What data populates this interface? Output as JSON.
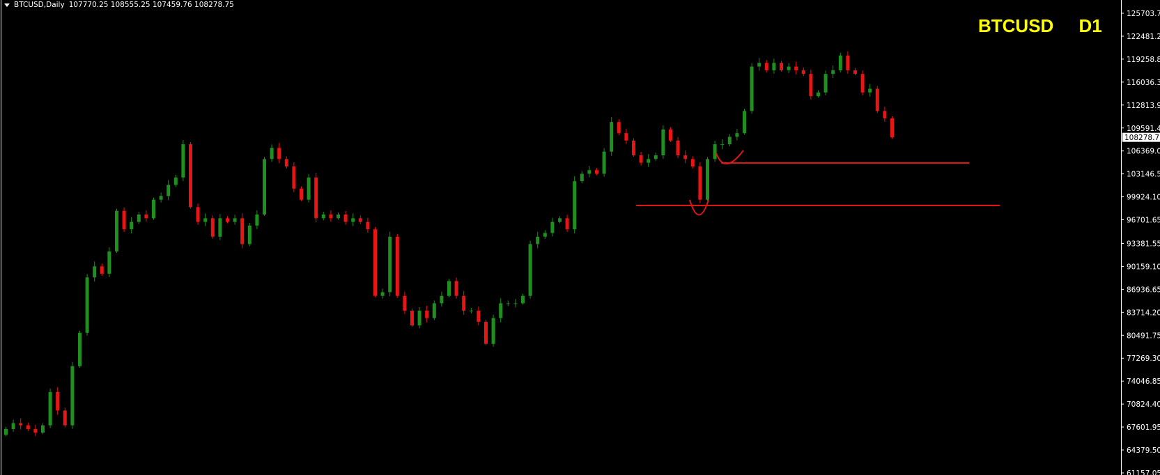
{
  "header": {
    "symbol_period": "BTCUSD,Daily",
    "ohlc": "107770.25 108555.25 107459.76 108278.75"
  },
  "overlay": {
    "symbol": "BTCUSD",
    "timeframe": "D1"
  },
  "colors": {
    "bull": "#1f8f1f",
    "bear": "#e81515",
    "background": "#000000",
    "axis": "#ffffff",
    "line": "#e01515",
    "title": "#ffff00"
  },
  "chart_data": {
    "type": "candlestick",
    "title": "",
    "y_ticks": [
      "125703.70",
      "122481.25",
      "119258.80",
      "116036.35",
      "112813.90",
      "109591.45",
      "106369.00",
      "103146.55",
      "99924.10",
      "96701.65",
      "93381.55",
      "90159.10",
      "86936.65",
      "83714.20",
      "80491.75",
      "77269.30",
      "74046.85",
      "70824.40",
      "67601.95",
      "64379.50",
      "61157.05"
    ],
    "ylim": [
      60000,
      127000
    ],
    "current_price": "108278.75",
    "first_open": 66500,
    "closes": [
      67320,
      68150,
      67840,
      67320,
      66800,
      67840,
      72520,
      69920,
      67840,
      76150,
      80830,
      88610,
      90170,
      89130,
      92250,
      97960,
      95370,
      96400,
      97440,
      96920,
      99520,
      100040,
      101600,
      102640,
      107310,
      98480,
      96400,
      96920,
      94330,
      96920,
      96400,
      96920,
      93290,
      95890,
      97440,
      105230,
      106790,
      105230,
      104190,
      101080,
      99520,
      102640,
      96920,
      97440,
      96920,
      97440,
      96400,
      96920,
      96400,
      95370,
      86020,
      86540,
      94330,
      86020,
      83940,
      81860,
      83940,
      82900,
      84980,
      86020,
      88100,
      86020,
      83940,
      83940,
      82380,
      79270,
      82900,
      84980,
      84980,
      84980,
      86020,
      93290,
      94330,
      94850,
      96400,
      96920,
      95370,
      102120,
      103160,
      103670,
      103160,
      106270,
      110430,
      108870,
      107830,
      105750,
      104710,
      105230,
      105750,
      109390,
      107830,
      105750,
      105230,
      104190,
      99520,
      105230,
      107310,
      107310,
      108350,
      108870,
      111980,
      118220,
      118730,
      117700,
      118730,
      117700,
      118220,
      117700,
      117180,
      114060,
      114580,
      117180,
      117700,
      119770,
      117700,
      117180,
      114580,
      115100,
      111980,
      110940,
      108278.75
    ],
    "horizontal_levels": [
      104680,
      98710
    ]
  }
}
